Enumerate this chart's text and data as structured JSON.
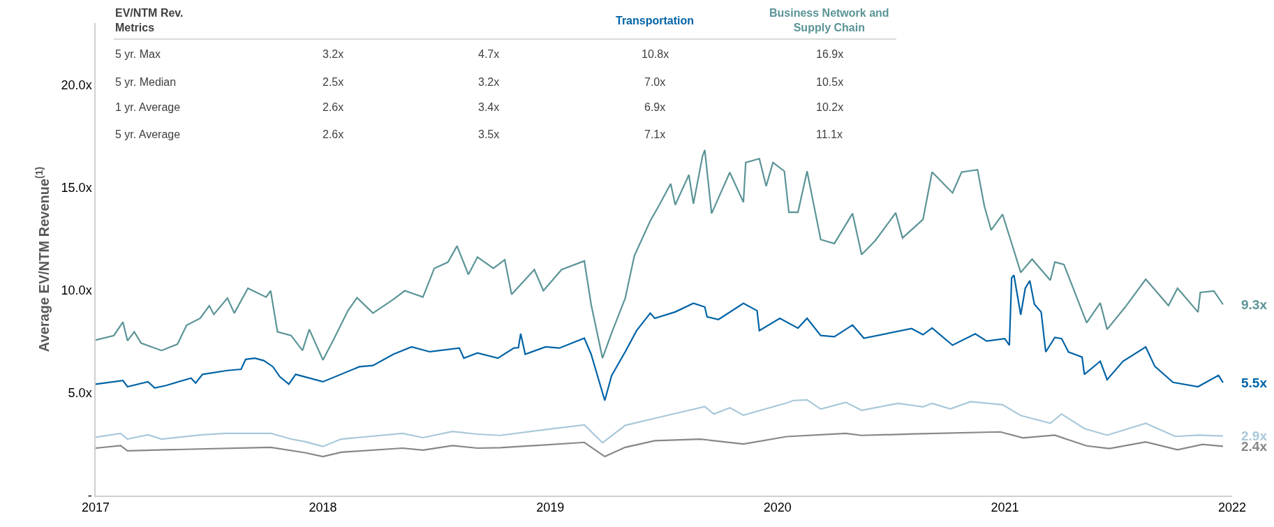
{
  "chart_data": {
    "type": "line",
    "ylabel": "Average EV/NTM Revenue$^{(1)}$",
    "xlim": [
      2017,
      2022
    ],
    "xticks": [
      2017,
      2018,
      2019,
      2020,
      2021,
      2022
    ],
    "ylim": [
      0,
      23
    ],
    "yticks": [
      {
        "value": 0,
        "label": "-"
      },
      {
        "value": 5,
        "label": "5.0x"
      },
      {
        "value": 10,
        "label": "10.0x"
      },
      {
        "value": 15,
        "label": "15.0x"
      },
      {
        "value": 20,
        "label": "20.0x"
      }
    ],
    "legend": false,
    "marker": "none",
    "line_style": "solid",
    "series": [
      {
        "color": "#878787",
        "x": [
          2017.0,
          2017.11,
          2017.14,
          2017.31,
          2017.77,
          2017.92,
          2018.0,
          2018.08,
          2018.35,
          2018.44,
          2018.57,
          2018.68,
          2018.78,
          2019.15,
          2019.24,
          2019.33,
          2019.46,
          2019.66,
          2019.85,
          2020.04,
          2020.3,
          2020.37,
          2020.6,
          2020.98,
          2021.08,
          2021.22,
          2021.36,
          2021.46,
          2021.62,
          2021.76,
          2021.87,
          2021.96
        ],
        "values": [
          2.31,
          2.43,
          2.18,
          2.23,
          2.35,
          2.09,
          1.9,
          2.11,
          2.31,
          2.21,
          2.43,
          2.31,
          2.33,
          2.59,
          1.9,
          2.35,
          2.67,
          2.75,
          2.51,
          2.87,
          3.03,
          2.93,
          3.0,
          3.1,
          2.81,
          2.94,
          2.42,
          2.29,
          2.61,
          2.23,
          2.49,
          2.4
        ]
      },
      {
        "color": "#a9c8da",
        "x": [
          2017.0,
          2017.11,
          2017.14,
          2017.23,
          2017.29,
          2017.47,
          2017.57,
          2017.77,
          2017.86,
          2017.92,
          2018.0,
          2018.08,
          2018.35,
          2018.44,
          2018.57,
          2018.68,
          2018.78,
          2019.0,
          2019.15,
          2019.23,
          2019.33,
          2019.49,
          2019.68,
          2019.72,
          2019.79,
          2019.85,
          2020.04,
          2020.07,
          2020.13,
          2020.19,
          2020.3,
          2020.37,
          2020.53,
          2020.64,
          2020.68,
          2020.76,
          2020.85,
          2020.99,
          2021.07,
          2021.2,
          2021.25,
          2021.35,
          2021.45,
          2021.62,
          2021.75,
          2021.85,
          2021.96
        ],
        "values": [
          2.84,
          3.03,
          2.75,
          2.96,
          2.75,
          2.96,
          3.03,
          3.03,
          2.75,
          2.63,
          2.39,
          2.75,
          3.03,
          2.82,
          3.12,
          2.99,
          2.93,
          3.24,
          3.44,
          2.57,
          3.42,
          3.84,
          4.33,
          3.97,
          4.27,
          3.91,
          4.51,
          4.63,
          4.66,
          4.21,
          4.54,
          4.15,
          4.49,
          4.32,
          4.49,
          4.22,
          4.57,
          4.42,
          3.9,
          3.52,
          3.97,
          3.26,
          2.94,
          3.52,
          2.88,
          2.94,
          2.9
        ]
      },
      {
        "name": "Transportation",
        "color": "#0063a6",
        "x": [
          2017.0,
          2017.12,
          2017.14,
          2017.23,
          2017.26,
          2017.31,
          2017.42,
          2017.44,
          2017.47,
          2017.58,
          2017.64,
          2017.66,
          2017.7,
          2017.74,
          2017.78,
          2017.81,
          2017.85,
          2017.88,
          2018.0,
          2018.16,
          2018.22,
          2018.31,
          2018.39,
          2018.47,
          2018.6,
          2018.62,
          2018.68,
          2018.77,
          2018.84,
          2018.86,
          2018.87,
          2018.89,
          2018.98,
          2019.04,
          2019.15,
          2019.18,
          2019.24,
          2019.27,
          2019.33,
          2019.38,
          2019.44,
          2019.46,
          2019.55,
          2019.63,
          2019.68,
          2019.69,
          2019.74,
          2019.85,
          2019.91,
          2019.92,
          2020.01,
          2020.09,
          2020.13,
          2020.19,
          2020.25,
          2020.33,
          2020.38,
          2020.59,
          2020.64,
          2020.68,
          2020.77,
          2020.87,
          2020.92,
          2021.0,
          2021.02,
          2021.03,
          2021.04,
          2021.07,
          2021.09,
          2021.11,
          2021.13,
          2021.16,
          2021.18,
          2021.22,
          2021.25,
          2021.28,
          2021.34,
          2021.35,
          2021.42,
          2021.45,
          2021.52,
          2021.62,
          2021.66,
          2021.74,
          2021.85,
          2021.94,
          2021.96
        ],
        "values": [
          5.42,
          5.6,
          5.3,
          5.54,
          5.24,
          5.36,
          5.72,
          5.48,
          5.9,
          6.09,
          6.15,
          6.63,
          6.69,
          6.57,
          6.27,
          5.79,
          5.42,
          5.9,
          5.54,
          6.27,
          6.33,
          6.88,
          7.24,
          7.0,
          7.18,
          6.69,
          6.94,
          6.69,
          7.18,
          7.2,
          7.88,
          6.88,
          7.24,
          7.18,
          7.66,
          6.88,
          4.63,
          5.84,
          7.0,
          8.03,
          8.88,
          8.63,
          8.94,
          9.36,
          9.18,
          8.7,
          8.57,
          9.36,
          9.0,
          8.03,
          8.63,
          8.15,
          8.63,
          7.79,
          7.73,
          8.3,
          7.66,
          8.13,
          7.83,
          8.16,
          7.32,
          7.87,
          7.52,
          7.64,
          7.32,
          10.6,
          10.73,
          8.8,
          10.09,
          10.46,
          9.32,
          8.93,
          6.99,
          7.7,
          7.64,
          6.99,
          6.74,
          5.9,
          6.54,
          5.64,
          6.54,
          7.23,
          6.29,
          5.51,
          5.3,
          5.85,
          5.5
        ]
      },
      {
        "name": "Business Network and Supply Chain",
        "color": "#5b9496",
        "x": [
          2017.0,
          2017.08,
          2017.12,
          2017.14,
          2017.17,
          2017.2,
          2017.29,
          2017.36,
          2017.4,
          2017.46,
          2017.5,
          2017.52,
          2017.58,
          2017.61,
          2017.67,
          2017.75,
          2017.77,
          2017.8,
          2017.86,
          2017.91,
          2017.94,
          2018.0,
          2018.05,
          2018.11,
          2018.15,
          2018.22,
          2018.31,
          2018.36,
          2018.44,
          2018.49,
          2018.55,
          2018.59,
          2018.64,
          2018.68,
          2018.75,
          2018.8,
          2018.83,
          2018.93,
          2018.97,
          2019.05,
          2019.15,
          2019.18,
          2019.23,
          2019.27,
          2019.33,
          2019.37,
          2019.44,
          2019.48,
          2019.53,
          2019.55,
          2019.61,
          2019.63,
          2019.67,
          2019.68,
          2019.71,
          2019.79,
          2019.85,
          2019.86,
          2019.92,
          2019.95,
          2019.98,
          2020.03,
          2020.05,
          2020.09,
          2020.13,
          2020.19,
          2020.25,
          2020.33,
          2020.37,
          2020.43,
          2020.52,
          2020.55,
          2020.64,
          2020.68,
          2020.77,
          2020.81,
          2020.88,
          2020.91,
          2020.94,
          2020.99,
          2021.03,
          2021.07,
          2021.12,
          2021.2,
          2021.22,
          2021.26,
          2021.36,
          2021.42,
          2021.45,
          2021.53,
          2021.62,
          2021.72,
          2021.76,
          2021.85,
          2021.86,
          2021.92,
          2021.96
        ],
        "values": [
          7.57,
          7.79,
          8.45,
          7.54,
          7.97,
          7.42,
          7.06,
          7.37,
          8.29,
          8.63,
          9.24,
          8.82,
          9.61,
          8.88,
          10.09,
          9.66,
          9.97,
          7.97,
          7.79,
          7.06,
          8.09,
          6.6,
          7.66,
          9.0,
          9.63,
          8.88,
          9.55,
          9.97,
          9.66,
          11.06,
          11.36,
          12.15,
          10.76,
          11.61,
          11.06,
          11.48,
          9.79,
          11.0,
          9.97,
          11.0,
          11.42,
          9.3,
          6.69,
          7.91,
          9.61,
          11.67,
          13.37,
          14.15,
          15.18,
          14.15,
          15.61,
          14.21,
          16.52,
          16.82,
          13.73,
          15.73,
          14.28,
          16.21,
          16.4,
          15.06,
          16.21,
          15.79,
          13.79,
          13.79,
          15.79,
          12.46,
          12.27,
          13.73,
          11.73,
          12.41,
          13.76,
          12.54,
          13.44,
          15.75,
          14.73,
          15.75,
          15.86,
          14.09,
          12.92,
          13.69,
          12.28,
          10.86,
          11.51,
          10.48,
          11.37,
          11.25,
          8.41,
          9.38,
          8.09,
          9.18,
          10.53,
          9.25,
          10.09,
          8.93,
          9.89,
          9.96,
          9.3
        ]
      }
    ],
    "annotations": [
      "EV/NTM Rev. Metrics",
      "5 yr. Max",
      "3.2x",
      "4.7x",
      "10.8x",
      "16.9x",
      "5 yr. Median",
      "2.5x",
      "3.2x",
      "7.0x",
      "10.5x",
      "1 yr. Average",
      "2.6x",
      "3.4x",
      "6.9x",
      "10.2x",
      "5 yr. Average",
      "2.6x",
      "3.5x",
      "7.1x",
      "11.1x",
      "9.3x",
      "5.5x",
      "2.9x",
      "2.4x"
    ]
  }
}
